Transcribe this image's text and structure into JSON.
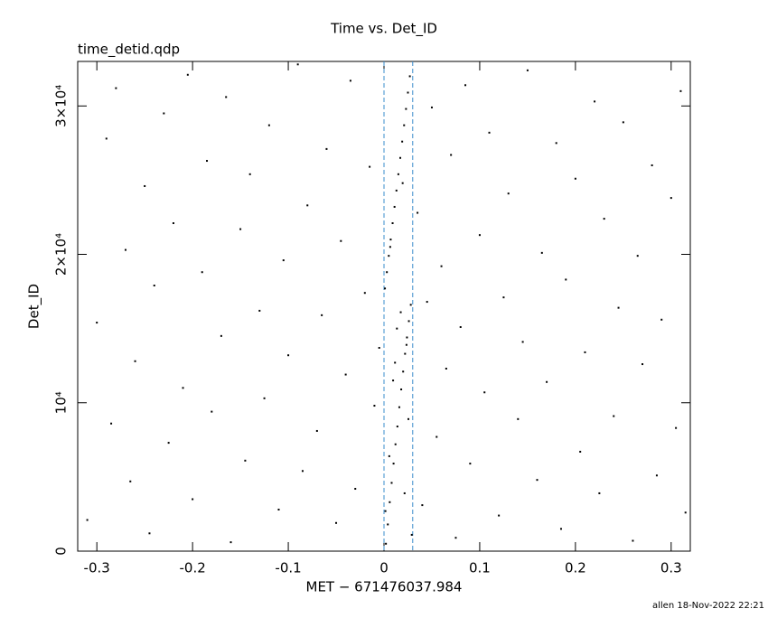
{
  "chart_data": {
    "type": "scatter",
    "title": "Time vs. Det_ID",
    "subtitle": "time_detid.qdp",
    "x_label": "MET − 671476037.984",
    "y_label": "Det_ID",
    "footer": "allen 18-Nov-2022 22:21",
    "color": "#000000",
    "xlim": [
      -0.32,
      0.32
    ],
    "ylim": [
      0,
      33000
    ],
    "xticks": [
      -0.3,
      -0.2,
      -0.1,
      0,
      0.1,
      0.2,
      0.3
    ],
    "yticks": [
      0,
      {
        "value": 10000,
        "label": "10⁴"
      },
      {
        "value": 20000,
        "label": "2×10⁴"
      },
      {
        "value": 30000,
        "label": "3×10⁴"
      }
    ],
    "vlines": [
      0,
      0.03
    ],
    "vline_color": "#3a8ccc",
    "x": [
      -0.31,
      -0.3,
      -0.29,
      -0.285,
      -0.28,
      -0.27,
      -0.265,
      -0.26,
      -0.25,
      -0.245,
      -0.24,
      -0.23,
      -0.225,
      -0.22,
      -0.21,
      -0.205,
      -0.2,
      -0.19,
      -0.185,
      -0.18,
      -0.17,
      -0.165,
      -0.16,
      -0.15,
      -0.145,
      -0.14,
      -0.13,
      -0.125,
      -0.12,
      -0.11,
      -0.105,
      -0.1,
      -0.09,
      -0.085,
      -0.08,
      -0.07,
      -0.065,
      -0.06,
      -0.05,
      -0.045,
      -0.04,
      -0.035,
      -0.03,
      -0.02,
      -0.015,
      -0.01,
      -0.005,
      0.035,
      0.04,
      0.045,
      0.05,
      0.055,
      0.06,
      0.065,
      0.07,
      0.075,
      0.08,
      0.085,
      0.09,
      0.1,
      0.105,
      0.11,
      0.12,
      0.125,
      0.13,
      0.14,
      0.145,
      0.15,
      0.16,
      0.165,
      0.17,
      0.18,
      0.185,
      0.19,
      0.2,
      0.205,
      0.21,
      0.22,
      0.225,
      0.23,
      0.24,
      0.245,
      0.25,
      0.26,
      0.265,
      0.27,
      0.28,
      0.285,
      0.29,
      0.3,
      0.305,
      0.31,
      0.315,
      0.002,
      0.004,
      0.006,
      0.008,
      0.01,
      0.012,
      0.014,
      0.016,
      0.018,
      0.02,
      0.022,
      0.024,
      0.026,
      0.028,
      0.001,
      0.003,
      0.005,
      0.007,
      0.009,
      0.011,
      0.013,
      0.015,
      0.017,
      0.019,
      0.021,
      0.023,
      0.025,
      0.027,
      0.029,
      0.0015,
      0.0055,
      0.0095,
      0.0135,
      0.0175,
      0.0215,
      0.0255,
      0.0065,
      0.0115,
      0.0195,
      0.0235
    ],
    "values": [
      2100,
      15400,
      27800,
      8600,
      31200,
      20300,
      4700,
      12800,
      24600,
      1200,
      17900,
      29500,
      7300,
      22100,
      11000,
      32100,
      3500,
      18800,
      26300,
      9400,
      14500,
      30600,
      600,
      21700,
      6100,
      25400,
      16200,
      10300,
      28700,
      2800,
      19600,
      13200,
      32800,
      5400,
      23300,
      8100,
      15900,
      27100,
      1900,
      20900,
      11900,
      31700,
      4200,
      17400,
      25900,
      9800,
      13700,
      22800,
      3100,
      16800,
      29900,
      7700,
      19200,
      12300,
      26700,
      900,
      15100,
      31400,
      5900,
      21300,
      10700,
      28200,
      2400,
      17100,
      24100,
      8900,
      14100,
      32400,
      4800,
      20100,
      11400,
      27500,
      1500,
      18300,
      25100,
      6700,
      13400,
      30300,
      3900,
      22400,
      9100,
      16400,
      28900,
      700,
      19900,
      12600,
      26000,
      5100,
      15600,
      23800,
      8300,
      31000,
      2600,
      500,
      1800,
      3300,
      4600,
      5900,
      7200,
      8400,
      9700,
      10900,
      12100,
      13300,
      14400,
      15500,
      16600,
      17700,
      18800,
      19900,
      21000,
      22100,
      23200,
      24300,
      25400,
      26500,
      27600,
      28700,
      29800,
      30900,
      32000,
      1100,
      2700,
      6400,
      11500,
      15000,
      16100,
      3900,
      8900,
      20500,
      12700,
      24800,
      13900
    ]
  }
}
